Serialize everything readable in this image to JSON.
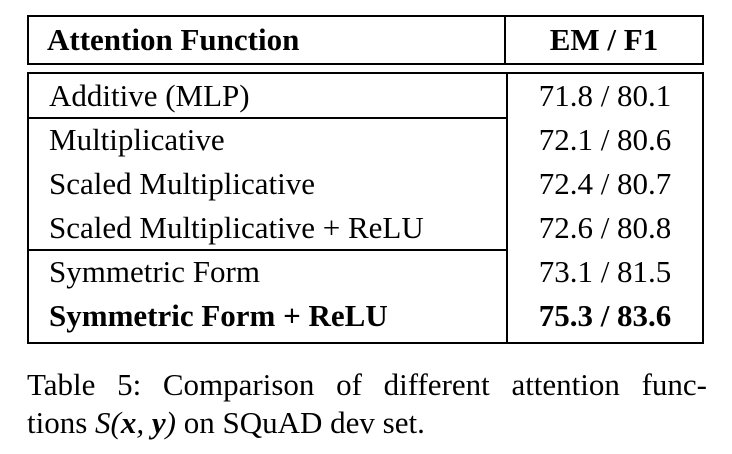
{
  "table": {
    "headers": {
      "function": "Attention Function",
      "score": "EM / F1"
    },
    "rows": [
      {
        "function": "Additive (MLP)",
        "score": "71.8 / 80.1",
        "bold": false
      },
      {
        "function": "Multiplicative",
        "score": "72.1 / 80.6",
        "bold": false
      },
      {
        "function": "Scaled Multiplicative",
        "score": "72.4 / 80.7",
        "bold": false
      },
      {
        "function": "Scaled Multiplicative + ReLU",
        "score": "72.6 / 80.8",
        "bold": false
      },
      {
        "function": "Symmetric Form",
        "score": "73.1 / 81.5",
        "bold": false
      },
      {
        "function": "Symmetric Form + ReLU",
        "score": "75.3 / 83.6",
        "bold": true
      }
    ]
  },
  "caption": {
    "line1": "Table 5:  Comparison of different attention func-",
    "line2_prefix": "tions",
    "math_fn": "S",
    "math_x": "x",
    "math_y": "y",
    "line2_suffix": "on SQuAD dev set."
  }
}
